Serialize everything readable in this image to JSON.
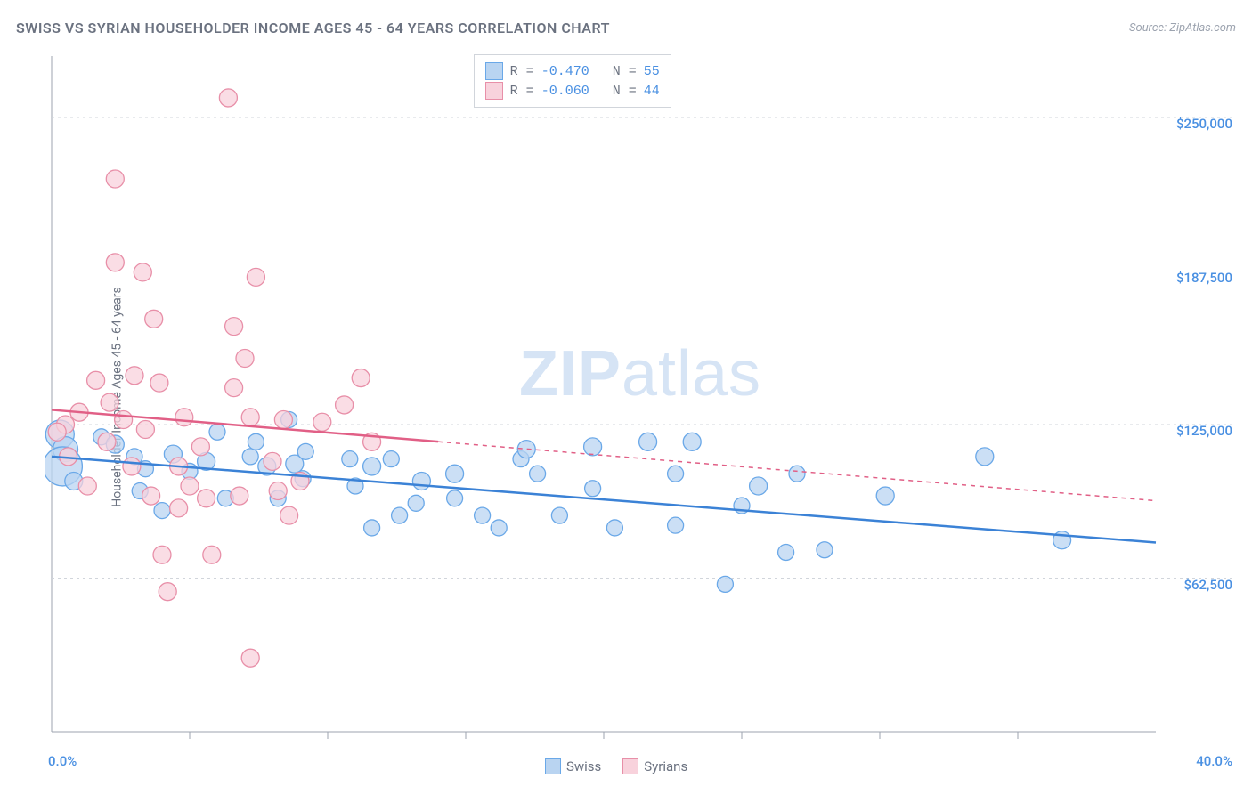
{
  "title": "SWISS VS SYRIAN HOUSEHOLDER INCOME AGES 45 - 64 YEARS CORRELATION CHART",
  "source": "Source: ZipAtlas.com",
  "watermark_a": "ZIP",
  "watermark_b": "atlas",
  "ylabel": "Householder Income Ages 45 - 64 years",
  "chart": {
    "type": "scatter",
    "xlim": [
      0,
      40
    ],
    "ylim": [
      0,
      275000
    ],
    "background_color": "#ffffff",
    "grid_color": "#d1d5db",
    "axis_color": "#9ca3af",
    "tick_color": "#9ca3af",
    "y_gridlines": [
      62500,
      125000,
      187500,
      250000
    ],
    "y_tick_labels": [
      "$62,500",
      "$125,000",
      "$187,500",
      "$250,000"
    ],
    "x_ticks_minor": [
      5,
      10,
      15,
      20,
      25,
      30,
      35
    ],
    "x_min_label": "0.0%",
    "x_max_label": "40.0%",
    "series": [
      {
        "name": "Swiss",
        "color_fill": "#b9d4f1",
        "color_stroke": "#6aa8e8",
        "line_color": "#3b82d6",
        "R": "-0.470",
        "N": "55",
        "trend": {
          "x1": 0,
          "y1": 112000,
          "x2": 40,
          "y2": 77000,
          "solid_until": 40
        },
        "points": [
          [
            0.3,
            121000,
            16
          ],
          [
            0.5,
            115000,
            14
          ],
          [
            0.4,
            108000,
            22
          ],
          [
            0.8,
            102000,
            10
          ],
          [
            1.8,
            120000,
            9
          ],
          [
            2.3,
            117000,
            10
          ],
          [
            3.0,
            112000,
            9
          ],
          [
            3.4,
            107000,
            9
          ],
          [
            3.2,
            98000,
            9
          ],
          [
            4.4,
            113000,
            10
          ],
          [
            4.0,
            90000,
            9
          ],
          [
            5.0,
            106000,
            9
          ],
          [
            5.6,
            110000,
            10
          ],
          [
            7.2,
            112000,
            9
          ],
          [
            7.4,
            118000,
            9
          ],
          [
            7.8,
            108000,
            10
          ],
          [
            6.3,
            95000,
            9
          ],
          [
            8.6,
            127000,
            9
          ],
          [
            8.8,
            109000,
            10
          ],
          [
            9.2,
            114000,
            9
          ],
          [
            9.1,
            103000,
            9
          ],
          [
            10.8,
            111000,
            9
          ],
          [
            11.0,
            100000,
            9
          ],
          [
            11.6,
            108000,
            10
          ],
          [
            11.6,
            83000,
            9
          ],
          [
            12.6,
            88000,
            9
          ],
          [
            12.3,
            111000,
            9
          ],
          [
            13.4,
            102000,
            10
          ],
          [
            13.2,
            93000,
            9
          ],
          [
            14.6,
            95000,
            9
          ],
          [
            14.6,
            105000,
            10
          ],
          [
            15.6,
            88000,
            9
          ],
          [
            16.2,
            83000,
            9
          ],
          [
            17.0,
            111000,
            9
          ],
          [
            17.2,
            115000,
            10
          ],
          [
            17.6,
            105000,
            9
          ],
          [
            18.4,
            88000,
            9
          ],
          [
            19.6,
            116000,
            10
          ],
          [
            19.6,
            99000,
            9
          ],
          [
            20.4,
            83000,
            9
          ],
          [
            21.6,
            118000,
            10
          ],
          [
            22.6,
            105000,
            9
          ],
          [
            22.6,
            84000,
            9
          ],
          [
            23.2,
            118000,
            10
          ],
          [
            24.4,
            60000,
            9
          ],
          [
            25.0,
            92000,
            9
          ],
          [
            25.6,
            100000,
            10
          ],
          [
            26.6,
            73000,
            9
          ],
          [
            27.0,
            105000,
            9
          ],
          [
            28.0,
            74000,
            9
          ],
          [
            30.2,
            96000,
            10
          ],
          [
            33.8,
            112000,
            10
          ],
          [
            36.6,
            78000,
            10
          ],
          [
            8.2,
            95000,
            9
          ],
          [
            6.0,
            122000,
            9
          ]
        ]
      },
      {
        "name": "Syrians",
        "color_fill": "#f8d2dc",
        "color_stroke": "#e88fa8",
        "line_color": "#e15f86",
        "R": "-0.060",
        "N": "44",
        "trend": {
          "x1": 0,
          "y1": 131000,
          "x2": 40,
          "y2": 94000,
          "solid_until": 14
        },
        "points": [
          [
            0.5,
            125000,
            10
          ],
          [
            0.6,
            112000,
            10
          ],
          [
            1.0,
            130000,
            10
          ],
          [
            1.6,
            143000,
            10
          ],
          [
            2.0,
            118000,
            10
          ],
          [
            2.1,
            134000,
            10
          ],
          [
            2.6,
            127000,
            10
          ],
          [
            2.3,
            225000,
            10
          ],
          [
            2.3,
            191000,
            10
          ],
          [
            3.0,
            145000,
            10
          ],
          [
            2.9,
            108000,
            10
          ],
          [
            3.4,
            123000,
            10
          ],
          [
            3.3,
            187000,
            10
          ],
          [
            3.9,
            142000,
            10
          ],
          [
            3.6,
            96000,
            10
          ],
          [
            4.0,
            72000,
            10
          ],
          [
            4.2,
            57000,
            10
          ],
          [
            4.6,
            91000,
            10
          ],
          [
            4.6,
            108000,
            10
          ],
          [
            4.8,
            128000,
            10
          ],
          [
            5.0,
            100000,
            10
          ],
          [
            5.4,
            116000,
            10
          ],
          [
            5.6,
            95000,
            10
          ],
          [
            5.8,
            72000,
            10
          ],
          [
            6.6,
            140000,
            10
          ],
          [
            6.4,
            258000,
            10
          ],
          [
            6.6,
            165000,
            10
          ],
          [
            7.0,
            152000,
            10
          ],
          [
            7.2,
            128000,
            10
          ],
          [
            7.2,
            30000,
            10
          ],
          [
            6.8,
            96000,
            10
          ],
          [
            7.4,
            185000,
            10
          ],
          [
            8.0,
            110000,
            10
          ],
          [
            8.2,
            98000,
            10
          ],
          [
            8.4,
            127000,
            10
          ],
          [
            8.6,
            88000,
            10
          ],
          [
            9.0,
            102000,
            10
          ],
          [
            9.8,
            126000,
            10
          ],
          [
            10.6,
            133000,
            10
          ],
          [
            11.2,
            144000,
            10
          ],
          [
            11.6,
            118000,
            10
          ],
          [
            0.2,
            122000,
            10
          ],
          [
            1.3,
            100000,
            10
          ],
          [
            3.7,
            168000,
            10
          ]
        ]
      }
    ]
  },
  "legend_top": {
    "rows": [
      {
        "swatch_fill": "#b9d4f1",
        "swatch_stroke": "#6aa8e8",
        "R": "-0.470",
        "N": "55"
      },
      {
        "swatch_fill": "#f8d2dc",
        "swatch_stroke": "#e88fa8",
        "R": "-0.060",
        "N": "44"
      }
    ]
  },
  "legend_bottom": {
    "items": [
      {
        "swatch_fill": "#b9d4f1",
        "swatch_stroke": "#6aa8e8",
        "label": "Swiss"
      },
      {
        "swatch_fill": "#f8d2dc",
        "swatch_stroke": "#e88fa8",
        "label": "Syrians"
      }
    ]
  }
}
